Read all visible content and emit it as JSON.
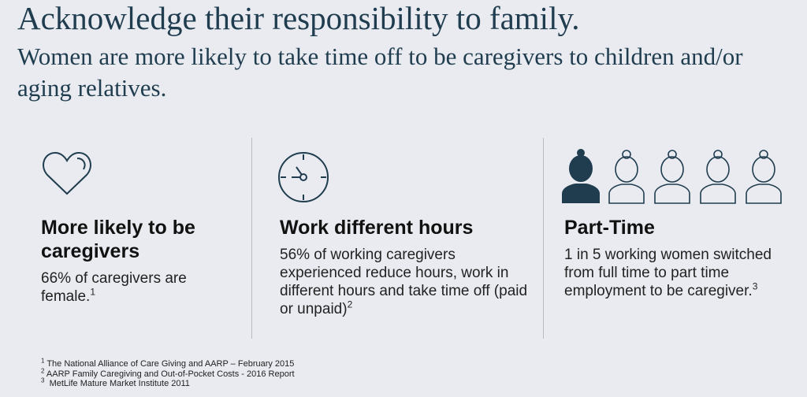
{
  "title": "Acknowledge their responsibility to family.",
  "subtitle": "Women are more likely to take time off to be caregivers to children and/or aging relatives.",
  "columns": [
    {
      "heading": "More likely to be caregivers",
      "body": "66% of caregivers are female.",
      "note": "1"
    },
    {
      "heading": "Work different hours",
      "body": "56% of working caregivers experienced reduce hours, work in different hours and take time off (paid or unpaid)",
      "note": "2"
    },
    {
      "heading": "Part-Time",
      "body": "1 in 5 working women switched from full time to part time employment to be caregiver.",
      "note": "3"
    }
  ],
  "footnotes": [
    {
      "marker": "1",
      "text": "The National Alliance of Care Giving and AARP – February 2015"
    },
    {
      "marker": "2",
      "text": "AARP Family Caregiving and Out-of-Pocket Costs - 2016 Report"
    },
    {
      "marker": "3",
      "text": "MetLife Mature Market Institute 2011"
    }
  ]
}
